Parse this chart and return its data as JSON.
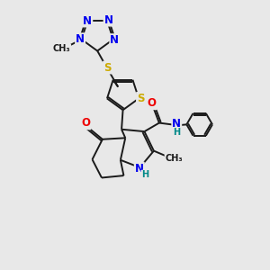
{
  "background_color": "#e8e8e8",
  "bond_color": "#1a1a1a",
  "atom_colors": {
    "N": "#0000ee",
    "S": "#ccaa00",
    "O": "#ee0000",
    "C": "#1a1a1a",
    "H": "#008888"
  },
  "font_size_atom": 8.5,
  "font_size_sub": 7.0
}
